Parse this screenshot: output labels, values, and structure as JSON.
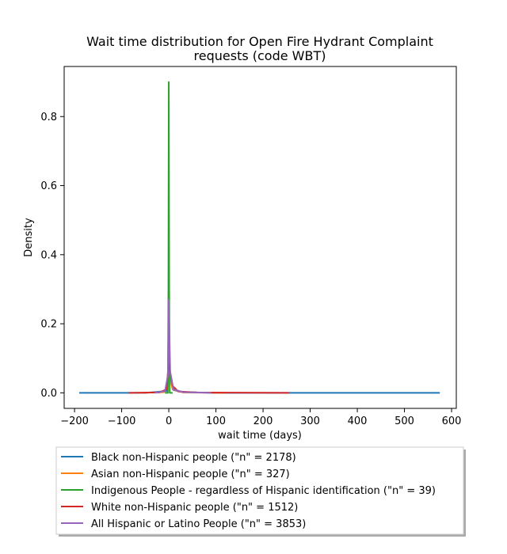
{
  "chart_data": {
    "type": "line",
    "title_line1": "Wait time distribution  for Open Fire Hydrant Complaint",
    "title_line2": "requests (code WBT)",
    "xlabel": "wait time (days)",
    "ylabel": "Density",
    "xlim": [
      -222,
      610
    ],
    "ylim": [
      -0.045,
      0.945
    ],
    "xticks": [
      -200,
      -100,
      0,
      100,
      200,
      300,
      400,
      500,
      600
    ],
    "yticks": [
      0.0,
      0.2,
      0.4,
      0.6,
      0.8
    ],
    "xtick_labels": [
      "−200",
      "−100",
      "0",
      "100",
      "200",
      "300",
      "400",
      "500",
      "600"
    ],
    "ytick_labels": [
      "0.0",
      "0.2",
      "0.4",
      "0.6",
      "0.8"
    ],
    "legend_position": "below-center",
    "series": [
      {
        "name": "Black non-Hispanic people (\"n\" = 2178)",
        "color": "#1f77b4",
        "points": [
          [
            -190,
            0
          ],
          [
            -50,
            0.0
          ],
          [
            -5,
            0.005
          ],
          [
            0,
            0.09
          ],
          [
            3,
            0.05
          ],
          [
            10,
            0.008
          ],
          [
            30,
            0.002
          ],
          [
            100,
            0.0
          ],
          [
            575,
            0
          ]
        ]
      },
      {
        "name": "Asian non-Hispanic people (\"n\" = 327)",
        "color": "#ff7f0e",
        "points": [
          [
            -60,
            0
          ],
          [
            -10,
            0.002
          ],
          [
            -2,
            0.02
          ],
          [
            0,
            0.07
          ],
          [
            2,
            0.05
          ],
          [
            8,
            0.01
          ],
          [
            30,
            0.001
          ],
          [
            120,
            0
          ]
        ]
      },
      {
        "name": "Indigenous People - regardless of Hispanic identification (\"n\" = 39)",
        "color": "#2ca02c",
        "points": [
          [
            -8,
            0
          ],
          [
            -2,
            0.0
          ],
          [
            -0.8,
            0.3
          ],
          [
            0,
            0.9
          ],
          [
            0.8,
            0.3
          ],
          [
            2,
            0.0
          ],
          [
            8,
            0
          ]
        ]
      },
      {
        "name": "White non-Hispanic people (\"n\" = 1512)",
        "color": "#d62728",
        "points": [
          [
            -85,
            0
          ],
          [
            -20,
            0.001
          ],
          [
            -5,
            0.01
          ],
          [
            0,
            0.085
          ],
          [
            3,
            0.06
          ],
          [
            8,
            0.02
          ],
          [
            20,
            0.004
          ],
          [
            60,
            0.001
          ],
          [
            255,
            0
          ]
        ]
      },
      {
        "name": "All Hispanic or Latino People (\"n\" = 3853)",
        "color": "#9467bd",
        "points": [
          [
            -30,
            0
          ],
          [
            -8,
            0.005
          ],
          [
            -2,
            0.05
          ],
          [
            0,
            0.27
          ],
          [
            1,
            0.19
          ],
          [
            3,
            0.06
          ],
          [
            10,
            0.01
          ],
          [
            30,
            0.002
          ],
          [
            90,
            0
          ]
        ]
      }
    ]
  }
}
